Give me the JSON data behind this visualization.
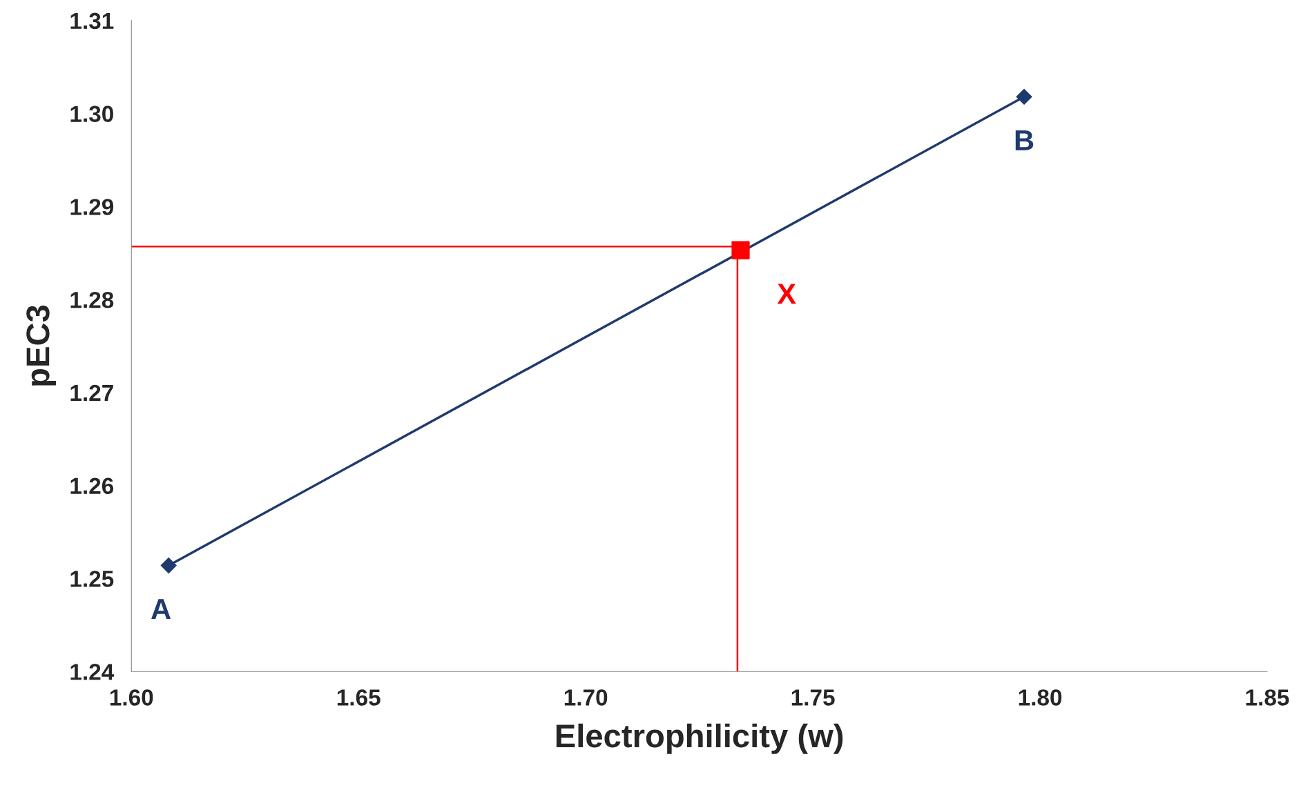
{
  "chart_data": {
    "type": "line",
    "xlabel": "Electrophilicity (w)",
    "ylabel": "pEC3",
    "series": [
      {
        "color": "#1f3a6e",
        "marker": "diamond",
        "x": [
          1.6082,
          1.7965
        ],
        "values": [
          1.2514,
          1.3018
        ]
      },
      {
        "color": "#ff0000",
        "marker": "none",
        "x": [
          1.6,
          1.7334
        ],
        "values": [
          1.2857,
          1.2857
        ]
      },
      {
        "color": "#ff0000",
        "marker": "none",
        "x": [
          1.7334,
          1.7334
        ],
        "values": [
          1.24,
          1.2857
        ]
      },
      {
        "type": "scatter",
        "color": "#ff0000",
        "marker": "square",
        "x": [
          1.7341
        ],
        "values": [
          1.2853
        ]
      }
    ],
    "annotations": [
      {
        "text": "A",
        "x": 1.6082,
        "y": 1.2514
      },
      {
        "text": "B",
        "x": 1.7965,
        "y": 1.3018
      },
      {
        "text": "X",
        "x": 1.7341,
        "y": 1.2853
      }
    ],
    "xlim": [
      1.6,
      1.85
    ],
    "xticks": [
      {
        "value": 1.6,
        "label": "1.60"
      },
      1.65,
      {
        "value": 1.7,
        "label": "1.70"
      },
      1.75,
      {
        "value": 1.8,
        "label": "1.80"
      },
      1.85
    ],
    "ylim": [
      1.24,
      1.31
    ],
    "yticks": [
      1.24,
      1.25,
      1.26,
      1.27,
      1.28,
      1.29,
      {
        "value": 1.3,
        "label": "1.30"
      },
      1.31
    ],
    "grid": false,
    "legend": false
  }
}
